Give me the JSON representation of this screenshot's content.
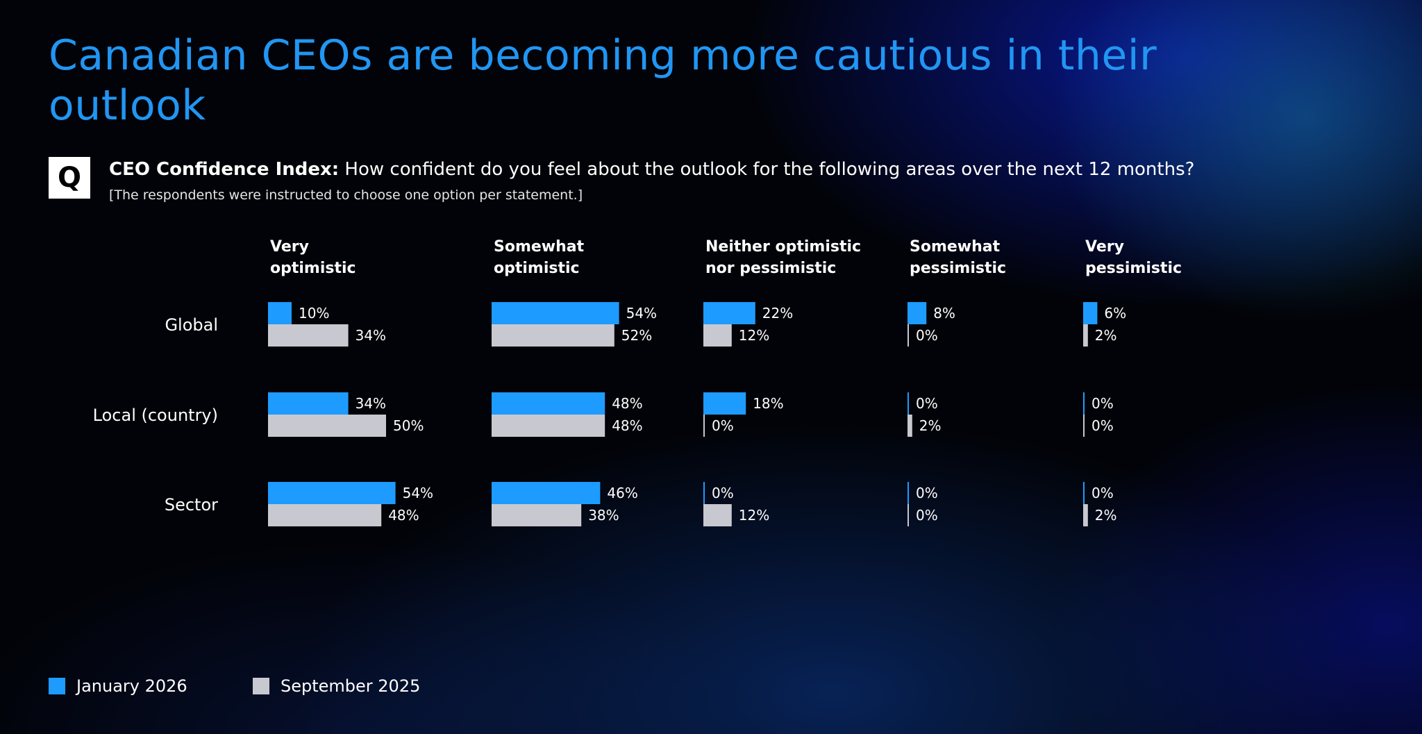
{
  "page": {
    "title": "Canadian CEOs are becoming more cautious in their outlook",
    "q_badge": "Q",
    "question_bold": "CEO Confidence Index:",
    "question_text": " How confident do you feel about the outlook for the following areas over the next 12 months?",
    "note": "[The respondents were instructed to choose one option per statement.]"
  },
  "colors": {
    "jan": "#1e9bff",
    "sep": "#c8c8d0",
    "title": "#2196f3"
  },
  "chart_data": {
    "type": "bar",
    "orientation": "horizontal",
    "title": "CEO Confidence Index",
    "unit": "%",
    "xlim": [
      0,
      100
    ],
    "columns": [
      [
        "Very",
        "optimistic"
      ],
      [
        "Somewhat",
        "optimistic"
      ],
      [
        "Neither optimistic",
        "nor pessimistic"
      ],
      [
        "Somewhat",
        "pessimistic"
      ],
      [
        "Very",
        "pessimistic"
      ]
    ],
    "categories": [
      "Global",
      "Local (country)",
      "Sector"
    ],
    "series": [
      {
        "name": "January 2026",
        "color": "#1e9bff",
        "values": [
          [
            10,
            54,
            22,
            8,
            6
          ],
          [
            34,
            48,
            18,
            0,
            0
          ],
          [
            54,
            46,
            0,
            0,
            0
          ]
        ]
      },
      {
        "name": "September 2025",
        "color": "#c8c8d0",
        "values": [
          [
            34,
            52,
            12,
            0,
            2
          ],
          [
            50,
            48,
            0,
            2,
            0
          ],
          [
            48,
            38,
            12,
            0,
            2
          ]
        ]
      }
    ]
  }
}
